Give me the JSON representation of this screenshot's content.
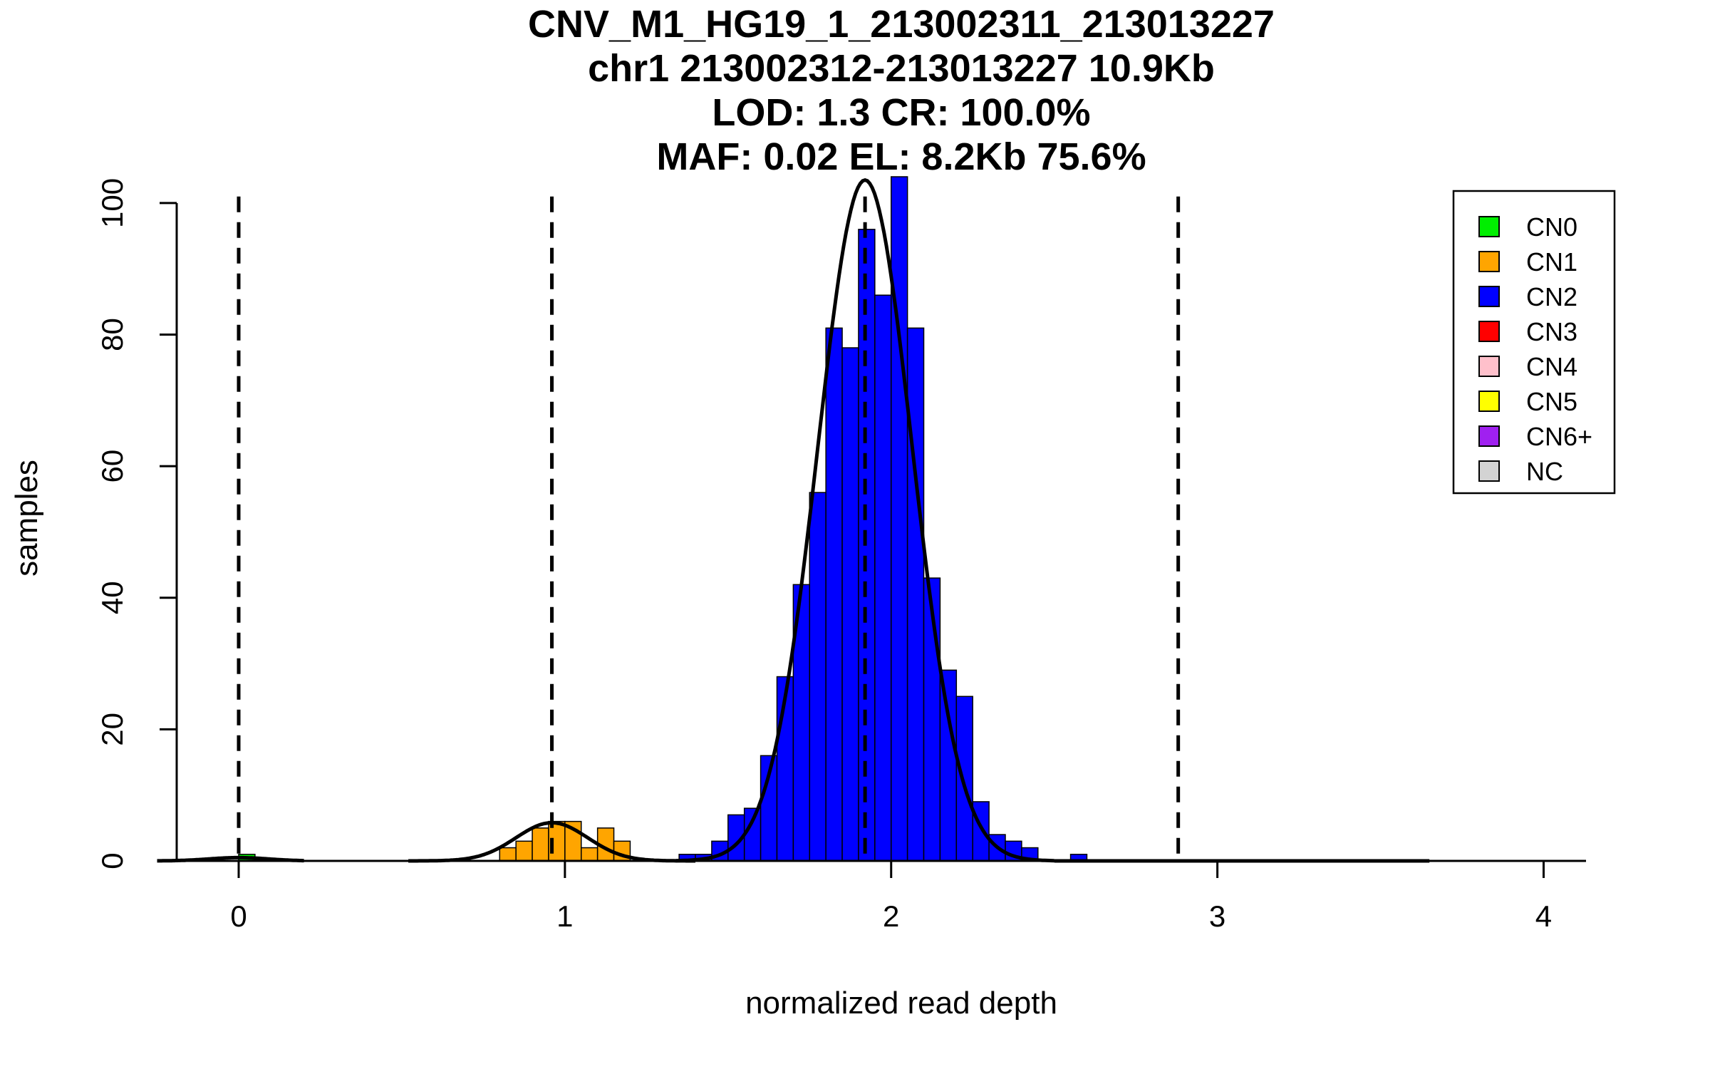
{
  "chart_data": {
    "type": "bar",
    "title_lines": [
      "CNV_M1_HG19_1_213002311_213013227",
      "chr1 213002312-213013227 10.9Kb",
      "LOD: 1.3 CR: 100.0%",
      "MAF: 0.02 EL: 8.2Kb 75.6%"
    ],
    "xlabel": "normalized read depth",
    "ylabel": "samples",
    "xlim": [
      -0.19,
      4.13
    ],
    "ylim": [
      0,
      104
    ],
    "x_ticks": [
      0,
      1,
      2,
      3,
      4
    ],
    "y_ticks": [
      0,
      20,
      40,
      60,
      80,
      100
    ],
    "bin_width": 0.05,
    "threshold_lines": [
      0.0,
      0.96,
      1.92,
      2.88
    ],
    "series": [
      {
        "name": "CN0",
        "color": "#00ee00",
        "bins": [
          [
            0.0,
            1
          ]
        ]
      },
      {
        "name": "CN1",
        "color": "#ffa500",
        "bins": [
          [
            0.8,
            2
          ],
          [
            0.85,
            3
          ],
          [
            0.9,
            5
          ],
          [
            0.95,
            6
          ],
          [
            1.0,
            6
          ],
          [
            1.05,
            2
          ],
          [
            1.1,
            5
          ],
          [
            1.15,
            3
          ]
        ]
      },
      {
        "name": "CN2",
        "color": "#0000ff",
        "bins": [
          [
            1.35,
            1
          ],
          [
            1.4,
            1
          ],
          [
            1.45,
            3
          ],
          [
            1.5,
            7
          ],
          [
            1.55,
            8
          ],
          [
            1.6,
            16
          ],
          [
            1.65,
            28
          ],
          [
            1.7,
            42
          ],
          [
            1.75,
            56
          ],
          [
            1.8,
            81
          ],
          [
            1.85,
            78
          ],
          [
            1.9,
            96
          ],
          [
            1.95,
            86
          ],
          [
            2.0,
            104
          ],
          [
            2.05,
            81
          ],
          [
            2.1,
            43
          ],
          [
            2.15,
            29
          ],
          [
            2.2,
            25
          ],
          [
            2.25,
            9
          ],
          [
            2.3,
            4
          ],
          [
            2.35,
            3
          ],
          [
            2.4,
            2
          ],
          [
            2.55,
            1
          ]
        ]
      }
    ],
    "density_curves": [
      {
        "mean": 0.0,
        "sd": 0.09,
        "peak": 0.5,
        "from": -0.25,
        "to": 0.2
      },
      {
        "mean": 0.96,
        "sd": 0.11,
        "peak": 5.8,
        "from": 0.52,
        "to": 1.4
      },
      {
        "mean": 1.92,
        "sd": 0.145,
        "peak": 103.5,
        "from": 1.34,
        "to": 2.5
      },
      {
        "mean": 3.0,
        "sd": 0.2,
        "peak": 0,
        "from": 2.5,
        "to": 3.65
      }
    ],
    "legend": {
      "position": "top-right",
      "entries": [
        {
          "label": "CN0",
          "color": "#00ee00"
        },
        {
          "label": "CN1",
          "color": "#ffa500"
        },
        {
          "label": "CN2",
          "color": "#0000ff"
        },
        {
          "label": "CN3",
          "color": "#ff0000"
        },
        {
          "label": "CN4",
          "color": "#ffc0cb"
        },
        {
          "label": "CN5",
          "color": "#ffff00"
        },
        {
          "label": "CN6+",
          "color": "#a020f0"
        },
        {
          "label": "NC",
          "color": "#d3d3d3"
        }
      ]
    }
  }
}
